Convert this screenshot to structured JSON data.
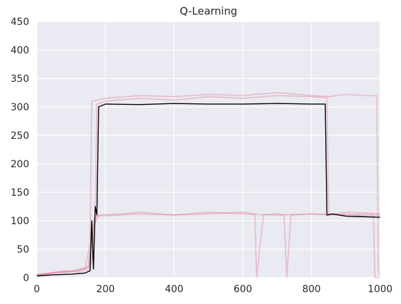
{
  "chart_data": {
    "type": "line",
    "title": "Q-Learning",
    "xlabel": "",
    "ylabel": "",
    "xlim": [
      0,
      1000
    ],
    "ylim": [
      0,
      450
    ],
    "xticks": [
      0,
      200,
      400,
      600,
      800,
      1000
    ],
    "yticks": [
      0,
      50,
      100,
      150,
      200,
      250,
      300,
      350,
      400,
      450
    ],
    "grid": true,
    "background": "#eaeaf2",
    "grid_color": "#ffffff",
    "series": [
      {
        "role": "run",
        "color": "#e27c9a",
        "opacity": 0.4,
        "points": [
          [
            0,
            5
          ],
          [
            40,
            8
          ],
          [
            80,
            12
          ],
          [
            120,
            10
          ],
          [
            150,
            15
          ],
          [
            160,
            30
          ],
          [
            170,
            110
          ],
          [
            175,
            305
          ],
          [
            200,
            310
          ],
          [
            300,
            315
          ],
          [
            400,
            312
          ],
          [
            500,
            318
          ],
          [
            600,
            315
          ],
          [
            700,
            320
          ],
          [
            800,
            318
          ],
          [
            845,
            316
          ],
          [
            850,
            110
          ],
          [
            900,
            112
          ],
          [
            950,
            108
          ],
          [
            1000,
            110
          ]
        ]
      },
      {
        "role": "run",
        "color": "#e27c9a",
        "opacity": 0.4,
        "points": [
          [
            0,
            4
          ],
          [
            60,
            10
          ],
          [
            100,
            12
          ],
          [
            140,
            15
          ],
          [
            155,
            60
          ],
          [
            160,
            310
          ],
          [
            200,
            315
          ],
          [
            300,
            320
          ],
          [
            400,
            318
          ],
          [
            500,
            322
          ],
          [
            600,
            320
          ],
          [
            700,
            325
          ],
          [
            800,
            320
          ],
          [
            850,
            318
          ],
          [
            900,
            322
          ],
          [
            950,
            320
          ],
          [
            990,
            320
          ],
          [
            995,
            10
          ],
          [
            1000,
            5
          ]
        ]
      },
      {
        "role": "run",
        "color": "#e27c9a",
        "opacity": 0.4,
        "points": [
          [
            0,
            3
          ],
          [
            50,
            8
          ],
          [
            100,
            10
          ],
          [
            150,
            20
          ],
          [
            165,
            90
          ],
          [
            180,
            110
          ],
          [
            250,
            112
          ],
          [
            300,
            115
          ],
          [
            400,
            110
          ],
          [
            500,
            112
          ],
          [
            600,
            115
          ],
          [
            635,
            112
          ],
          [
            640,
            0
          ],
          [
            660,
            110
          ],
          [
            700,
            112
          ],
          [
            720,
            110
          ],
          [
            728,
            0
          ],
          [
            740,
            110
          ],
          [
            800,
            112
          ],
          [
            850,
            110
          ],
          [
            900,
            115
          ],
          [
            1000,
            112
          ]
        ]
      },
      {
        "role": "run",
        "color": "#e27c9a",
        "opacity": 0.4,
        "points": [
          [
            0,
            6
          ],
          [
            80,
            10
          ],
          [
            120,
            12
          ],
          [
            150,
            18
          ],
          [
            165,
            100
          ],
          [
            175,
            108
          ],
          [
            300,
            112
          ],
          [
            400,
            110
          ],
          [
            500,
            115
          ],
          [
            600,
            112
          ],
          [
            700,
            110
          ],
          [
            800,
            112
          ],
          [
            900,
            110
          ],
          [
            980,
            112
          ],
          [
            985,
            0
          ],
          [
            1000,
            0
          ]
        ]
      },
      {
        "role": "mean",
        "color": "#000000",
        "opacity": 1,
        "points": [
          [
            0,
            3
          ],
          [
            50,
            5
          ],
          [
            100,
            6
          ],
          [
            140,
            8
          ],
          [
            155,
            12
          ],
          [
            160,
            100
          ],
          [
            165,
            15
          ],
          [
            170,
            125
          ],
          [
            175,
            110
          ],
          [
            180,
            300
          ],
          [
            200,
            305
          ],
          [
            300,
            304
          ],
          [
            400,
            306
          ],
          [
            500,
            305
          ],
          [
            600,
            305
          ],
          [
            700,
            306
          ],
          [
            800,
            305
          ],
          [
            840,
            305
          ],
          [
            845,
            110
          ],
          [
            860,
            112
          ],
          [
            900,
            108
          ],
          [
            1000,
            106
          ]
        ]
      }
    ]
  }
}
